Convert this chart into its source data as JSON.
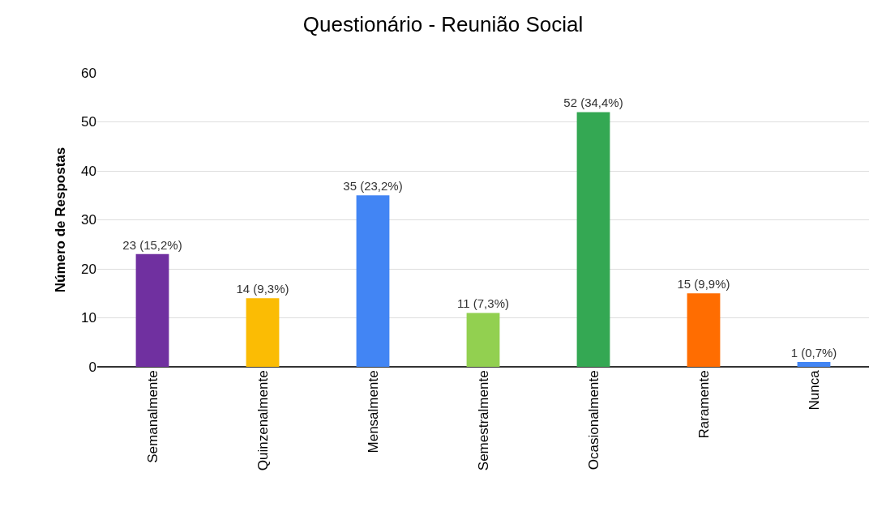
{
  "chart_data": {
    "type": "bar",
    "title": "Questionário - Reunião Social",
    "ylabel": "Número de Respostas",
    "categories": [
      "Semanalmente",
      "Quinzenalmente",
      "Mensalmente",
      "Semestralmente",
      "Ocasionalmente",
      "Raramente",
      "Nunca"
    ],
    "values": [
      23,
      14,
      35,
      11,
      52,
      15,
      1
    ],
    "colors": [
      "#7030a0",
      "#fbbc04",
      "#4285f4",
      "#92d050",
      "#34a853",
      "#ff6d01",
      "#4285f4"
    ],
    "value_labels": [
      "23 (15,2%)",
      "14 (9,3%)",
      "35 (23,2%)",
      "11 (7,3%)",
      "52 (34,4%)",
      "15 (9,9%)",
      "1 (0,7%)"
    ],
    "ylim": [
      0,
      60
    ],
    "yticks": [
      0,
      10,
      20,
      30,
      40,
      50,
      60
    ],
    "grid": "y"
  }
}
